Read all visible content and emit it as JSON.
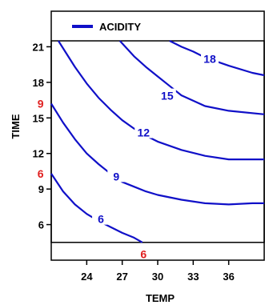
{
  "chart_data": {
    "type": "line",
    "subtype": "contour",
    "title": "",
    "xlabel": "TEMP",
    "ylabel": "TIME",
    "xlim": [
      21,
      39
    ],
    "ylim": [
      4.5,
      21.5
    ],
    "plot_xlim": [
      21,
      39
    ],
    "plot_ylim": [
      3,
      24
    ],
    "x_ticks": [
      24,
      27,
      30,
      33,
      36
    ],
    "y_ticks": [
      6,
      9,
      12,
      15,
      18,
      21
    ],
    "x_tick_labels": [
      "24",
      "27",
      "30",
      "33",
      "36"
    ],
    "y_tick_labels": [
      "6",
      "9",
      "12",
      "15",
      "18",
      "21"
    ],
    "grid": false,
    "legend": {
      "position": "top-left",
      "entries": [
        "ACIDITY"
      ]
    },
    "series": [
      {
        "name": "ACIDITY",
        "color": "#1010c8",
        "contours": [
          {
            "level": 6,
            "label": "6",
            "label_at": [
              25.2,
              6.4
            ],
            "points": [
              [
                21,
                10.3
              ],
              [
                22,
                8.8
              ],
              [
                23,
                7.7
              ],
              [
                24,
                6.9
              ],
              [
                25,
                6.3
              ],
              [
                26,
                5.8
              ],
              [
                27,
                5.3
              ],
              [
                28,
                4.9
              ],
              [
                28.7,
                4.5
              ]
            ]
          },
          {
            "level": 9,
            "label": "9",
            "label_at": [
              26.5,
              10.0
            ],
            "points": [
              [
                21,
                16.2
              ],
              [
                22,
                14.6
              ],
              [
                23,
                13.2
              ],
              [
                24,
                12.0
              ],
              [
                25,
                11.1
              ],
              [
                26,
                10.3
              ],
              [
                27,
                9.6
              ],
              [
                28,
                9.2
              ],
              [
                29,
                8.8
              ],
              [
                30,
                8.5
              ],
              [
                32,
                8.1
              ],
              [
                34,
                7.8
              ],
              [
                36,
                7.7
              ],
              [
                38,
                7.8
              ],
              [
                39,
                7.8
              ]
            ]
          },
          {
            "level": 12,
            "label": "12",
            "label_at": [
              28.8,
              13.7
            ],
            "points": [
              [
                21.6,
                21.5
              ],
              [
                23,
                19.3
              ],
              [
                24,
                17.9
              ],
              [
                25,
                16.7
              ],
              [
                26,
                15.7
              ],
              [
                27,
                14.8
              ],
              [
                28,
                14.1
              ],
              [
                29,
                13.5
              ],
              [
                30,
                13.0
              ],
              [
                32,
                12.3
              ],
              [
                34,
                11.8
              ],
              [
                36,
                11.5
              ],
              [
                39,
                11.5
              ]
            ]
          },
          {
            "level": 15,
            "label": "15",
            "label_at": [
              30.8,
              16.8
            ],
            "points": [
              [
                26.8,
                21.5
              ],
              [
                28,
                20.2
              ],
              [
                29,
                19.3
              ],
              [
                30,
                18.5
              ],
              [
                31,
                17.7
              ],
              [
                32,
                16.9
              ],
              [
                34,
                16.0
              ],
              [
                36,
                15.6
              ],
              [
                39,
                15.3
              ]
            ]
          },
          {
            "level": 18,
            "label": "18",
            "label_at": [
              34.4,
              19.9
            ],
            "points": [
              [
                31.0,
                21.5
              ],
              [
                32,
                21.0
              ],
              [
                33,
                20.6
              ],
              [
                34,
                20.1
              ],
              [
                36,
                19.4
              ],
              [
                38,
                18.8
              ],
              [
                39,
                18.6
              ]
            ]
          }
        ]
      }
    ],
    "annotations": [
      {
        "text": "9",
        "x": 20.1,
        "y": 16.2,
        "color": "#e02020"
      },
      {
        "text": "6",
        "x": 20.1,
        "y": 10.3,
        "color": "#e02020"
      },
      {
        "text": "6",
        "x": 28.8,
        "y": 3.5,
        "color": "#e02020"
      }
    ]
  }
}
